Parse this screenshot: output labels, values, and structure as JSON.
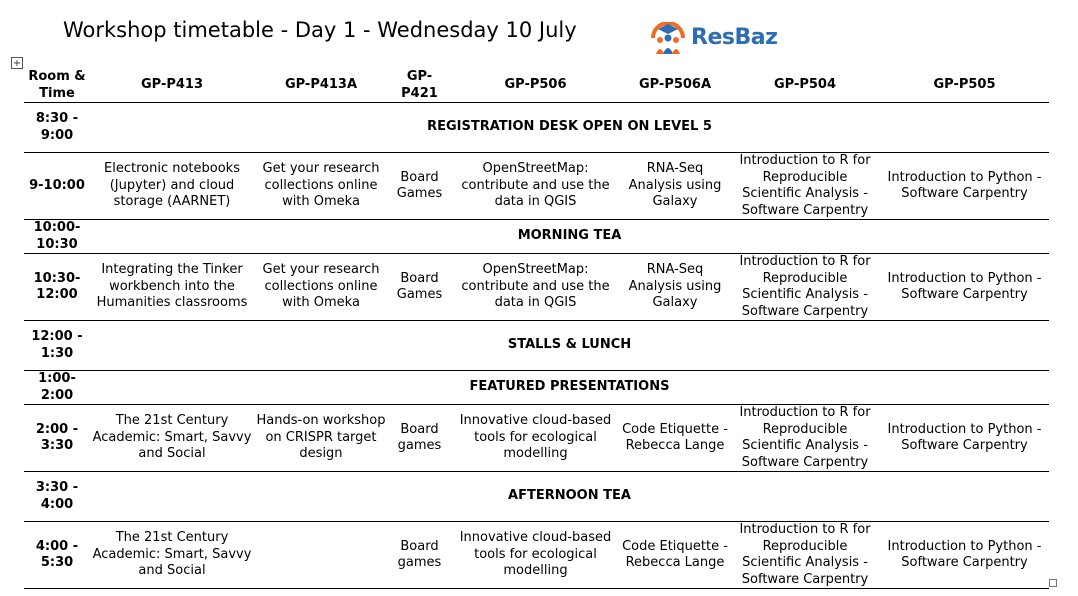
{
  "title": "Workshop timetable - Day 1 - Wednesday 10 July",
  "logo": {
    "text": "ResBaz",
    "icon": "graduate-people-icon",
    "accent": "#f26b21",
    "brand": "#2e6db4"
  },
  "table": {
    "headers": [
      "Room & Time",
      "GP-P413",
      "GP-P413A",
      "GP-P421",
      "GP-P506",
      "GP-P506A",
      "GP-P504",
      "GP-P505"
    ],
    "rows": [
      {
        "time": "8:30 - 9:00",
        "span": "REGISTRATION DESK OPEN ON LEVEL 5"
      },
      {
        "time": "9-10:00",
        "cells": [
          "Electronic notebooks (Jupyter) and cloud storage (AARNET)",
          "Get your research collections online with Omeka",
          "Board Games",
          "OpenStreetMap: contribute and use the data in QGIS",
          "RNA-Seq Analysis using Galaxy",
          "Introduction to R for Reproducible Scientific Analysis - Software Carpentry",
          "Introduction to Python - Software Carpentry"
        ]
      },
      {
        "time": "10:00-10:30",
        "span": "MORNING TEA"
      },
      {
        "time": "10:30-12:00",
        "cells": [
          "Integrating the Tinker workbench into the Humanities classrooms",
          "Get your research collections online with Omeka",
          "Board Games",
          "OpenStreetMap: contribute and use the data in QGIS",
          "RNA-Seq Analysis using Galaxy",
          "Introduction to R for Reproducible Scientific Analysis - Software Carpentry",
          "Introduction to Python - Software Carpentry"
        ]
      },
      {
        "time": "12:00 - 1:30",
        "span": "STALLS & LUNCH"
      },
      {
        "time": "1:00-2:00",
        "span": "FEATURED PRESENTATIONS"
      },
      {
        "time": "2:00 - 3:30",
        "cells": [
          "The 21st Century Academic: Smart, Savvy and Social",
          "Hands-on workshop on CRISPR target design",
          "Board games",
          "Innovative cloud-based tools for ecological modelling",
          "Code Etiquette - Rebecca Lange",
          "Introduction to R for Reproducible Scientific Analysis - Software Carpentry",
          "Introduction to Python - Software Carpentry"
        ]
      },
      {
        "time": "3:30 - 4:00",
        "span": "AFTERNOON TEA"
      },
      {
        "time": "4:00 - 5:30",
        "cells": [
          "The 21st Century Academic: Smart, Savvy and Social",
          "",
          "Board games",
          "Innovative cloud-based tools for ecological modelling",
          "Code Etiquette - Rebecca Lange",
          "Introduction to R for Reproducible Scientific Analysis - Software Carpentry",
          "Introduction to Python - Software Carpentry"
        ]
      }
    ]
  }
}
